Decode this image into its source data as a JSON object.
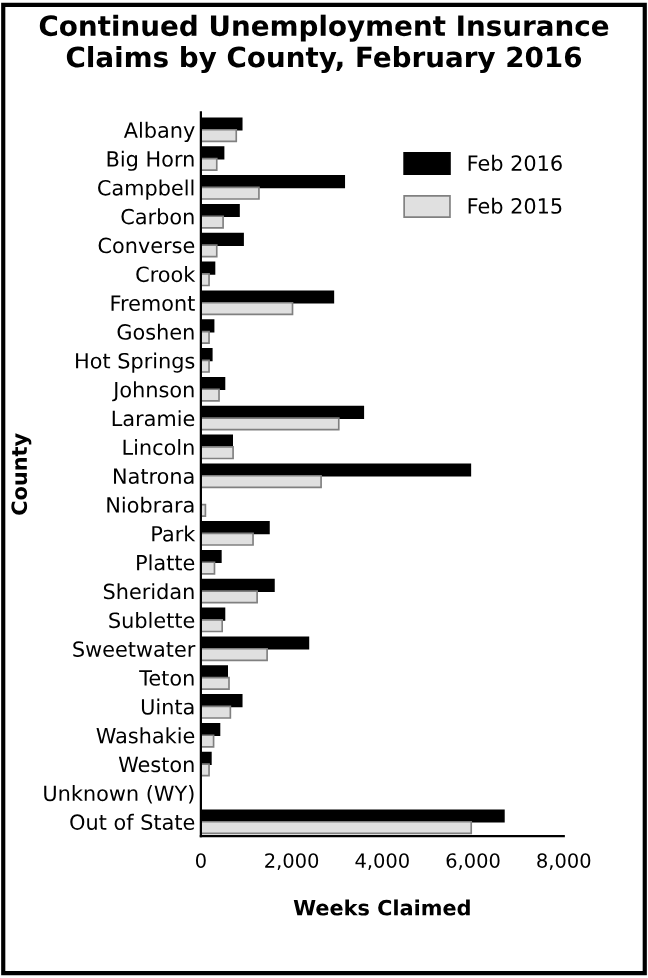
{
  "chart_data": {
    "type": "bar",
    "orientation": "horizontal",
    "title": "Continued Unemployment Insurance\nClaims by County, February 2016",
    "xlabel": "Weeks Claimed",
    "ylabel": "County",
    "categories": [
      "Albany",
      "Big Horn",
      "Campbell",
      "Carbon",
      "Converse",
      "Crook",
      "Fremont",
      "Goshen",
      "Hot Springs",
      "Johnson",
      "Laramie",
      "Lincoln",
      "Natrona",
      "Niobrara",
      "Park",
      "Platte",
      "Sheridan",
      "Sublette",
      "Sweetwater",
      "Teton",
      "Uinta",
      "Washakie",
      "Weston",
      "Unknown (WY)",
      "Out of State"
    ],
    "series": [
      {
        "name": "Feb 2016",
        "color": "#000000",
        "values": [
          900,
          500,
          3160,
          840,
          930,
          300,
          2920,
          280,
          240,
          520,
          3580,
          690,
          5940,
          null,
          1500,
          440,
          1610,
          520,
          2370,
          580,
          900,
          410,
          220,
          null,
          6680
        ]
      },
      {
        "name": "Feb 2015",
        "color": "#e0e0e0",
        "values": [
          780,
          350,
          1280,
          490,
          350,
          180,
          2020,
          180,
          180,
          400,
          3040,
          710,
          2650,
          100,
          1150,
          300,
          1240,
          470,
          1460,
          620,
          650,
          280,
          180,
          null,
          5960
        ]
      }
    ],
    "xlim": [
      0,
      8000
    ],
    "xticks": [
      {
        "value": 0,
        "label": "0"
      },
      {
        "value": 2000,
        "label": "2,000"
      },
      {
        "value": 4000,
        "label": "4,000"
      },
      {
        "value": 6000,
        "label": "6,000"
      },
      {
        "value": 8000,
        "label": "8,000"
      }
    ],
    "legend": "top right",
    "grid": false
  }
}
